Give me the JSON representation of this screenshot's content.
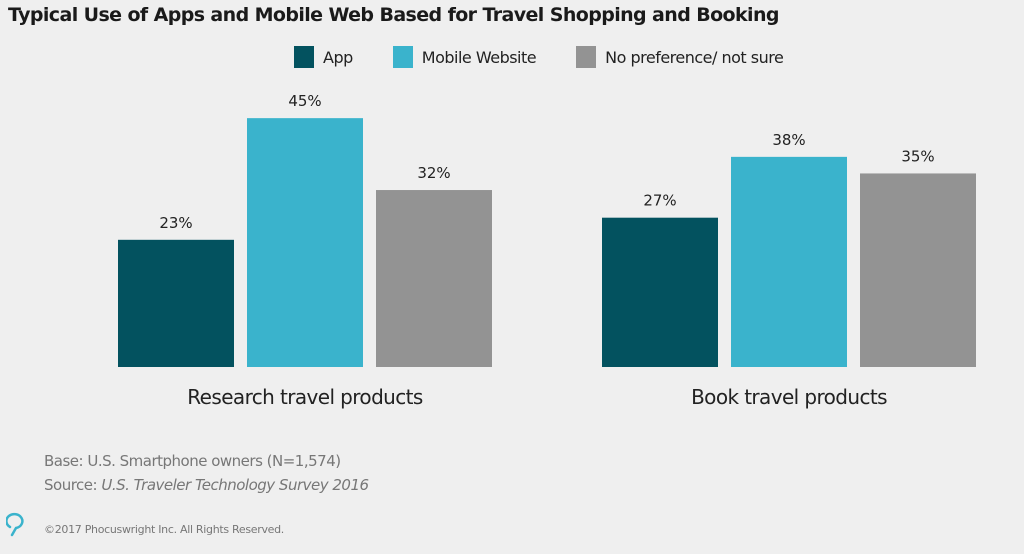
{
  "chart_data": {
    "type": "bar",
    "title": "Typical Use of Apps and Mobile Web Based for Travel Shopping and Booking",
    "categories": [
      "Research travel products",
      "Book travel products"
    ],
    "series": [
      {
        "name": "App",
        "values": [
          23,
          27
        ],
        "labels": [
          "23%",
          "27%"
        ],
        "color": "#03525f"
      },
      {
        "name": "Mobile Website",
        "values": [
          45,
          38
        ],
        "labels": [
          "45%",
          "38%"
        ],
        "color": "#3ab3cc"
      },
      {
        "name": "No preference/ not sure",
        "values": [
          32,
          35
        ],
        "labels": [
          "32%",
          "35%"
        ],
        "color": "#939393"
      }
    ],
    "ylim": [
      0,
      50
    ],
    "grid": false,
    "legend_position": "top-center",
    "xlabel": "",
    "ylabel": ""
  },
  "footer": {
    "base": "Base: U.S. Smartphone owners (N=1,574)",
    "source_prefix": "Source: ",
    "source_title": "U.S. Traveler Technology Survey 2016",
    "copyright": "©2017 Phocuswright Inc. All Rights Reserved.",
    "logo_text": "Phocuswright"
  }
}
